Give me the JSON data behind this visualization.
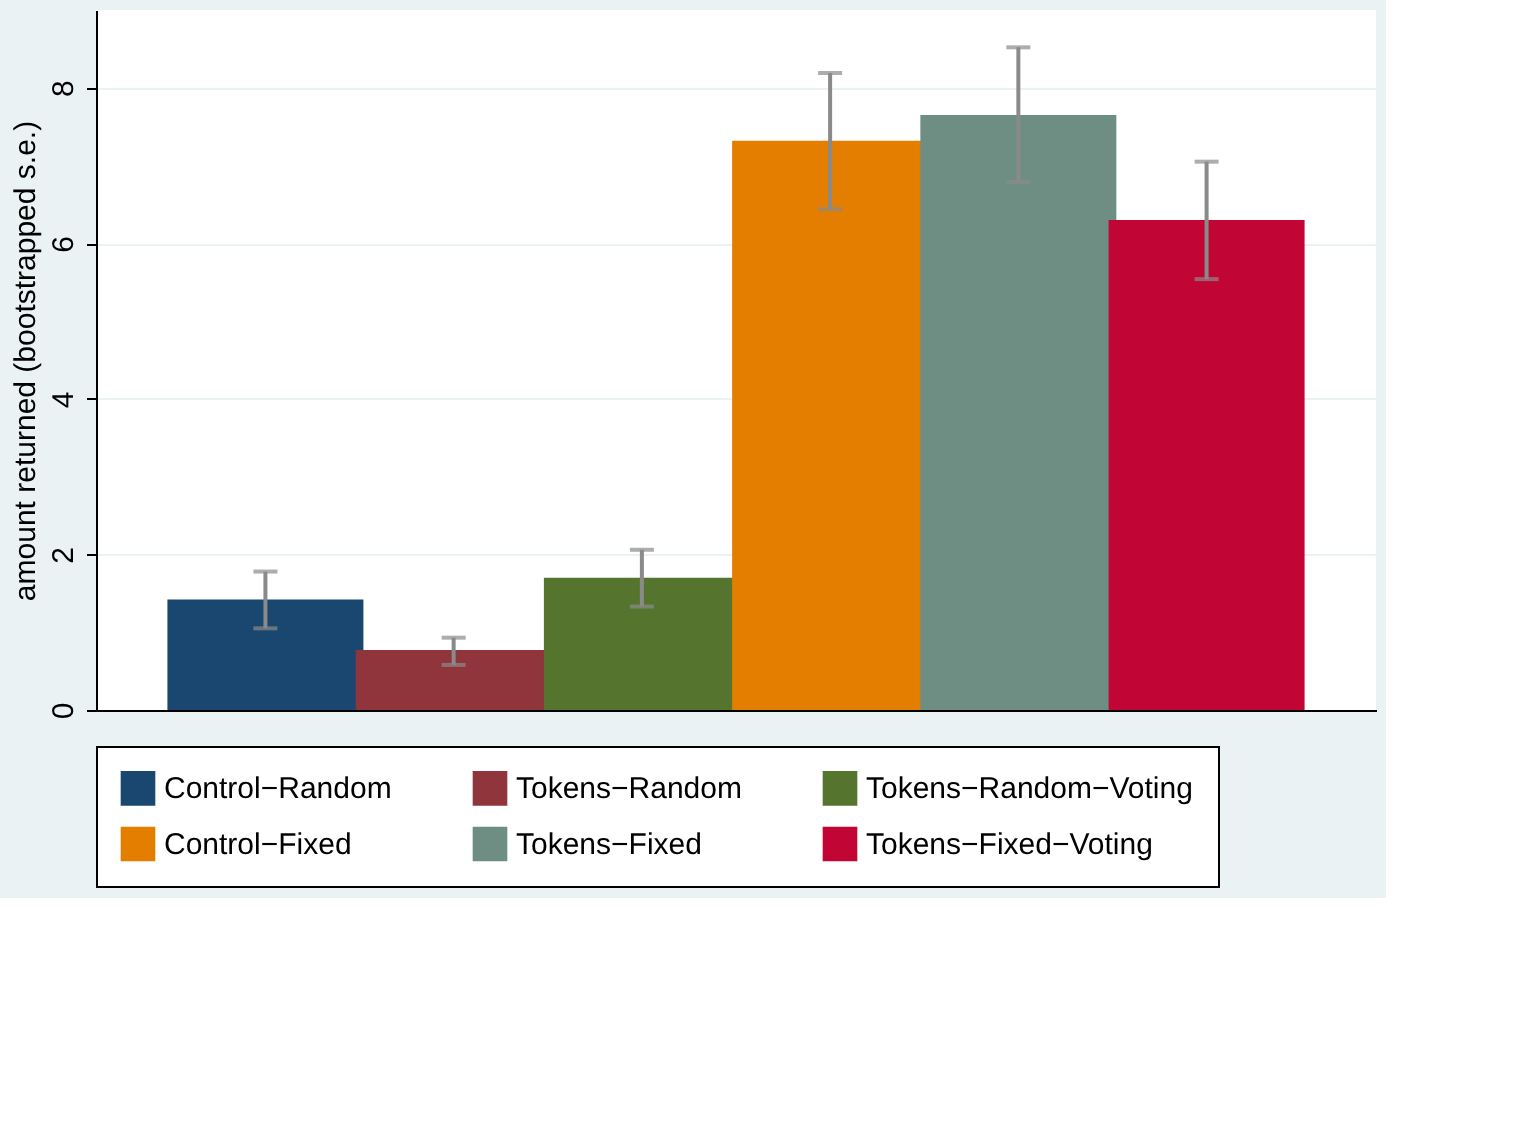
{
  "chart_data": {
    "type": "bar",
    "ylabel": "amount returned (bootstrapped s.e.)",
    "categories": [
      null
    ],
    "series": [
      {
        "name": "Control−Random",
        "color": "#1a476f",
        "values": [
          1.42
        ],
        "errors": [
          [
            1.05,
            1.78
          ]
        ]
      },
      {
        "name": "Tokens−Random",
        "color": "#90353b",
        "values": [
          0.77
        ],
        "errors": [
          [
            0.58,
            0.93
          ]
        ]
      },
      {
        "name": "Tokens−Random−Voting",
        "color": "#55752f",
        "values": [
          1.7
        ],
        "errors": [
          [
            1.33,
            2.06
          ]
        ]
      },
      {
        "name": "Control−Fixed",
        "color": "#e37e00",
        "values": [
          7.32
        ],
        "errors": [
          [
            6.44,
            8.19
          ]
        ]
      },
      {
        "name": "Tokens−Fixed",
        "color": "#6e8e84",
        "values": [
          7.65
        ],
        "errors": [
          [
            6.79,
            8.52
          ]
        ]
      },
      {
        "name": "Tokens−Fixed−Voting",
        "color": "#c10534",
        "values": [
          6.3
        ],
        "errors": [
          [
            5.54,
            7.05
          ]
        ]
      }
    ],
    "ylim": [
      0,
      9
    ],
    "yticks": [
      0,
      2,
      4,
      6,
      8
    ],
    "grid": "y",
    "legend": "bottom",
    "tick_labels": "y"
  }
}
